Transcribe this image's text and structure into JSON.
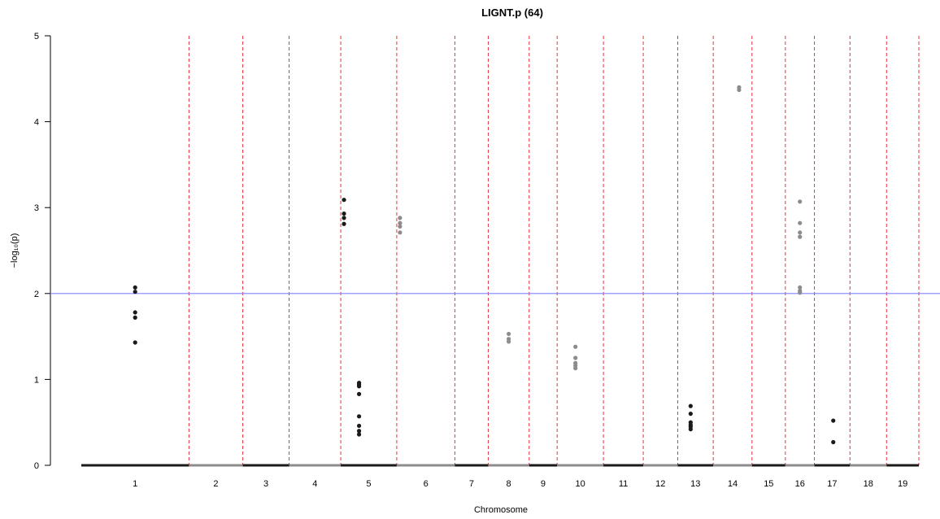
{
  "chart_data": {
    "type": "scatter",
    "title": "LIGNT.p (64)",
    "xlabel": "Chromosome",
    "ylabel": "−log₁₀(p)",
    "ylim": [
      0,
      5
    ],
    "yticks": [
      0,
      1,
      2,
      3,
      4,
      5
    ],
    "threshold": {
      "value": 2,
      "color": "#8080ff"
    },
    "point_colors": [
      "#1a1a1a",
      "#8c8c8c"
    ],
    "boundary_color": "#e8303a",
    "chromosomes": [
      {
        "label": "1",
        "start": 0,
        "end": 1000
      },
      {
        "label": "2",
        "start": 1000,
        "end": 1500
      },
      {
        "label": "3",
        "start": 1500,
        "end": 1930
      },
      {
        "label": "4",
        "start": 1930,
        "end": 2410
      },
      {
        "label": "5",
        "start": 2410,
        "end": 2930
      },
      {
        "label": "6",
        "start": 2930,
        "end": 3470
      },
      {
        "label": "7",
        "start": 3470,
        "end": 3780
      },
      {
        "label": "8",
        "start": 3780,
        "end": 4160
      },
      {
        "label": "9",
        "start": 4160,
        "end": 4420
      },
      {
        "label": "10",
        "start": 4420,
        "end": 4850
      },
      {
        "label": "11",
        "start": 4850,
        "end": 5220
      },
      {
        "label": "12",
        "start": 5220,
        "end": 5540
      },
      {
        "label": "13",
        "start": 5540,
        "end": 5870
      },
      {
        "label": "14",
        "start": 5870,
        "end": 6230
      },
      {
        "label": "15",
        "start": 6230,
        "end": 6540
      },
      {
        "label": "16",
        "start": 6540,
        "end": 6810
      },
      {
        "label": "17",
        "start": 6810,
        "end": 7140
      },
      {
        "label": "18",
        "start": 7140,
        "end": 7480
      },
      {
        "label": "19",
        "start": 7480,
        "end": 7780
      }
    ],
    "points": [
      {
        "chr": "1",
        "x": 500,
        "y": 2.07
      },
      {
        "chr": "1",
        "x": 500,
        "y": 2.02
      },
      {
        "chr": "1",
        "x": 500,
        "y": 1.78
      },
      {
        "chr": "1",
        "x": 500,
        "y": 1.72
      },
      {
        "chr": "1",
        "x": 500,
        "y": 1.43
      },
      {
        "chr": "5",
        "x": 2440,
        "y": 3.09
      },
      {
        "chr": "5",
        "x": 2440,
        "y": 2.93
      },
      {
        "chr": "5",
        "x": 2440,
        "y": 2.88
      },
      {
        "chr": "5",
        "x": 2440,
        "y": 2.81
      },
      {
        "chr": "5",
        "x": 2580,
        "y": 0.96
      },
      {
        "chr": "5",
        "x": 2580,
        "y": 0.94
      },
      {
        "chr": "5",
        "x": 2580,
        "y": 0.92
      },
      {
        "chr": "5",
        "x": 2580,
        "y": 0.83
      },
      {
        "chr": "5",
        "x": 2580,
        "y": 0.57
      },
      {
        "chr": "5",
        "x": 2580,
        "y": 0.46
      },
      {
        "chr": "5",
        "x": 2580,
        "y": 0.4
      },
      {
        "chr": "5",
        "x": 2580,
        "y": 0.36
      },
      {
        "chr": "6",
        "x": 2960,
        "y": 2.88
      },
      {
        "chr": "6",
        "x": 2960,
        "y": 2.82
      },
      {
        "chr": "6",
        "x": 2960,
        "y": 2.78
      },
      {
        "chr": "6",
        "x": 2960,
        "y": 2.71
      },
      {
        "chr": "8",
        "x": 3970,
        "y": 1.53
      },
      {
        "chr": "8",
        "x": 3970,
        "y": 1.47
      },
      {
        "chr": "8",
        "x": 3970,
        "y": 1.44
      },
      {
        "chr": "10",
        "x": 4590,
        "y": 1.38
      },
      {
        "chr": "10",
        "x": 4590,
        "y": 1.25
      },
      {
        "chr": "10",
        "x": 4590,
        "y": 1.19
      },
      {
        "chr": "10",
        "x": 4590,
        "y": 1.16
      },
      {
        "chr": "10",
        "x": 4590,
        "y": 1.13
      },
      {
        "chr": "13",
        "x": 5660,
        "y": 0.69
      },
      {
        "chr": "13",
        "x": 5660,
        "y": 0.6
      },
      {
        "chr": "13",
        "x": 5660,
        "y": 0.5
      },
      {
        "chr": "13",
        "x": 5660,
        "y": 0.47
      },
      {
        "chr": "13",
        "x": 5660,
        "y": 0.45
      },
      {
        "chr": "13",
        "x": 5660,
        "y": 0.42
      },
      {
        "chr": "14",
        "x": 6110,
        "y": 4.4
      },
      {
        "chr": "14",
        "x": 6110,
        "y": 4.37
      },
      {
        "chr": "16",
        "x": 6675,
        "y": 3.07
      },
      {
        "chr": "16",
        "x": 6675,
        "y": 2.82
      },
      {
        "chr": "16",
        "x": 6675,
        "y": 2.71
      },
      {
        "chr": "16",
        "x": 6675,
        "y": 2.66
      },
      {
        "chr": "16",
        "x": 6675,
        "y": 2.07
      },
      {
        "chr": "16",
        "x": 6675,
        "y": 2.03
      },
      {
        "chr": "16",
        "x": 6675,
        "y": 2.01
      },
      {
        "chr": "17",
        "x": 6985,
        "y": 0.52
      },
      {
        "chr": "17",
        "x": 6985,
        "y": 0.27
      }
    ]
  }
}
